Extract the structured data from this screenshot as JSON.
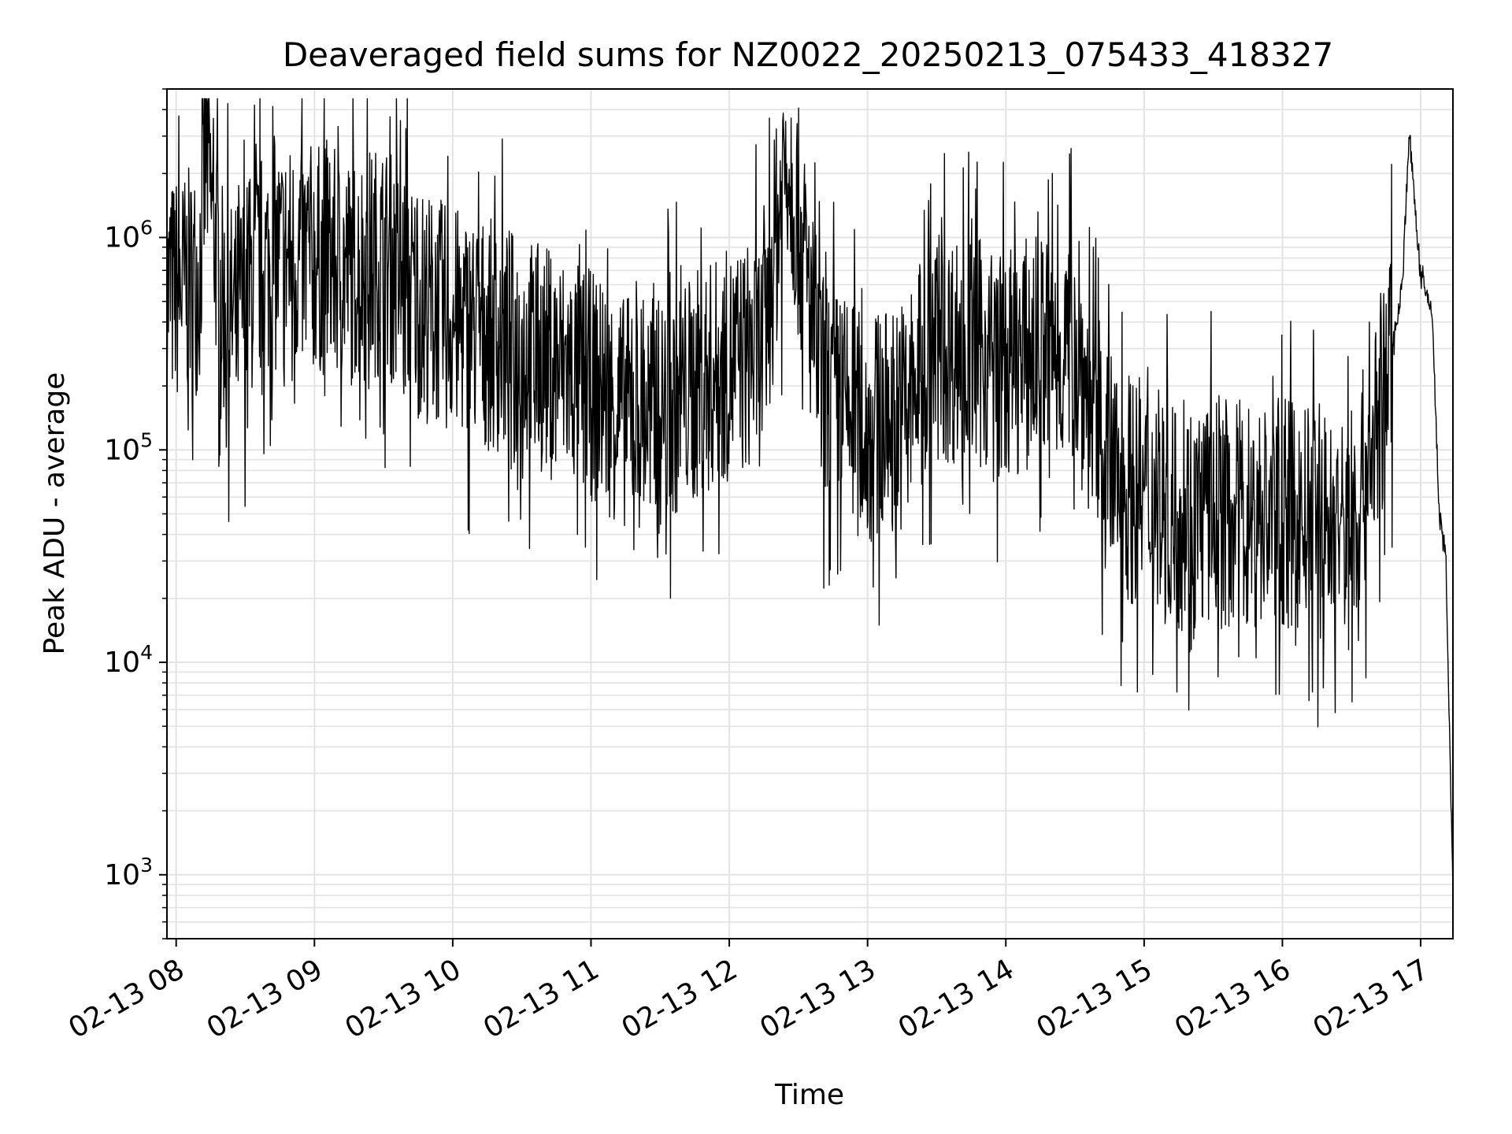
{
  "chart_data": {
    "type": "line",
    "title": "Deaveraged field sums for NZ0022_20250213_075433_418327",
    "xlabel": "Time",
    "ylabel": "Peak ADU - average",
    "y_scale": "log",
    "ylim": [
      500,
      5000000
    ],
    "xlim": [
      "2025-02-13 07:56",
      "2025-02-13 17:14"
    ],
    "x_ticks": [
      "02-13 08",
      "02-13 09",
      "02-13 10",
      "02-13 11",
      "02-13 12",
      "02-13 13",
      "02-13 14",
      "02-13 15",
      "02-13 16",
      "02-13 17"
    ],
    "y_ticks": [
      {
        "base": "10",
        "exp": "3",
        "value": 1000
      },
      {
        "base": "10",
        "exp": "4",
        "value": 10000
      },
      {
        "base": "10",
        "exp": "5",
        "value": 100000
      },
      {
        "base": "10",
        "exp": "6",
        "value": 1000000
      }
    ],
    "grid": true,
    "line_color": "#000000",
    "series": [
      {
        "x": [
          "2025-02-13 07:56",
          "2025-02-13 08:05",
          "2025-02-13 08:10",
          "2025-02-13 08:13",
          "2025-02-13 08:15",
          "2025-02-13 08:20",
          "2025-02-13 08:25",
          "2025-02-13 08:35",
          "2025-02-13 08:45",
          "2025-02-13 09:00",
          "2025-02-13 09:15",
          "2025-02-13 09:30",
          "2025-02-13 09:45",
          "2025-02-13 10:00",
          "2025-02-13 10:15",
          "2025-02-13 10:30",
          "2025-02-13 10:45",
          "2025-02-13 11:00",
          "2025-02-13 11:15",
          "2025-02-13 11:30",
          "2025-02-13 11:45",
          "2025-02-13 12:00",
          "2025-02-13 12:15",
          "2025-02-13 12:25",
          "2025-02-13 12:40",
          "2025-02-13 13:00",
          "2025-02-13 13:15",
          "2025-02-13 13:30",
          "2025-02-13 13:45",
          "2025-02-13 14:00",
          "2025-02-13 14:15",
          "2025-02-13 14:30",
          "2025-02-13 14:45",
          "2025-02-13 15:00",
          "2025-02-13 15:15",
          "2025-02-13 15:30",
          "2025-02-13 15:45",
          "2025-02-13 16:00",
          "2025-02-13 16:15",
          "2025-02-13 16:30",
          "2025-02-13 16:45",
          "2025-02-13 16:52",
          "2025-02-13 16:55",
          "2025-02-13 17:00",
          "2025-02-13 17:05",
          "2025-02-13 17:08",
          "2025-02-13 17:11",
          "2025-02-13 17:14"
        ],
        "y": [
          550000,
          600000,
          650000,
          2700000,
          1500000,
          500000,
          400000,
          700000,
          800000,
          800000,
          700000,
          800000,
          500000,
          400000,
          350000,
          300000,
          250000,
          200000,
          150000,
          150000,
          200000,
          250000,
          300000,
          2800000,
          200000,
          120000,
          150000,
          300000,
          300000,
          250000,
          300000,
          300000,
          80000,
          60000,
          50000,
          50000,
          50000,
          50000,
          45000,
          40000,
          200000,
          600000,
          3100000,
          650000,
          450000,
          50000,
          30000,
          800
        ]
      }
    ]
  }
}
